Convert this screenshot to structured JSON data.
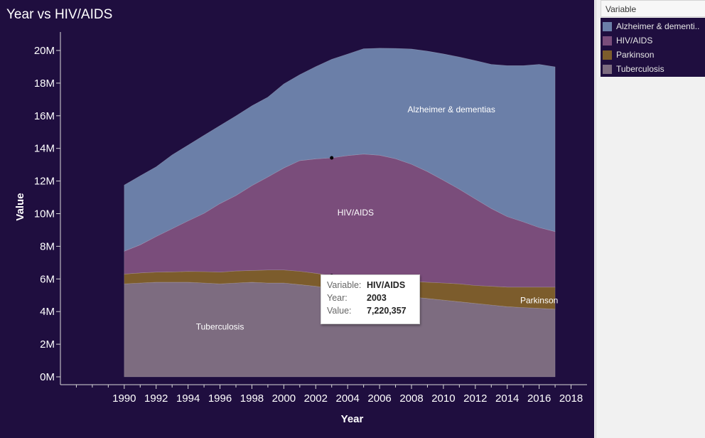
{
  "title": "Year vs HIV/AIDS",
  "legend": {
    "header": "Variable",
    "items": [
      {
        "label": "Alzheimer & dementias",
        "display": "Alzheimer & dementi..",
        "color": "#6b7fa8"
      },
      {
        "label": "HIV/AIDS",
        "display": "HIV/AIDS",
        "color": "#7a4d7b"
      },
      {
        "label": "Parkinson",
        "display": "Parkinson",
        "color": "#7c5c2c"
      },
      {
        "label": "Tuberculosis",
        "display": "Tuberculosis",
        "color": "#7d6c80"
      }
    ]
  },
  "tooltip": {
    "variable_key": "Variable:",
    "variable_value": "HIV/AIDS",
    "year_key": "Year:",
    "year_value": "2003",
    "value_key": "Value:",
    "value_value": "7,220,357"
  },
  "chart_data": {
    "type": "area",
    "stacked": true,
    "title": "Year vs HIV/AIDS",
    "xlabel": "Year",
    "ylabel": "Value",
    "x": [
      1990,
      1991,
      1992,
      1993,
      1994,
      1995,
      1996,
      1997,
      1998,
      1999,
      2000,
      2001,
      2002,
      2003,
      2004,
      2005,
      2006,
      2007,
      2008,
      2009,
      2010,
      2011,
      2012,
      2013,
      2014,
      2015,
      2016,
      2017
    ],
    "xlim": [
      1986,
      2019
    ],
    "xticks": [
      1990,
      1992,
      1994,
      1996,
      1998,
      2000,
      2002,
      2004,
      2006,
      2008,
      2010,
      2012,
      2014,
      2016,
      2018
    ],
    "ylim": [
      0,
      21000000
    ],
    "yticks": [
      0,
      2000000,
      4000000,
      6000000,
      8000000,
      10000000,
      12000000,
      14000000,
      16000000,
      18000000,
      20000000
    ],
    "ytick_labels": [
      "0M",
      "2M",
      "4M",
      "6M",
      "8M",
      "10M",
      "12M",
      "14M",
      "16M",
      "18M",
      "20M"
    ],
    "grid": false,
    "legend_position": "right",
    "series": [
      {
        "name": "Tuberculosis",
        "color": "#7d6c80",
        "label_x": 1996,
        "label_y": 2900000,
        "values": [
          5700000,
          5750000,
          5800000,
          5800000,
          5800000,
          5750000,
          5700000,
          5750000,
          5800000,
          5750000,
          5750000,
          5650000,
          5550000,
          5400000,
          5300000,
          5200000,
          5100000,
          5000000,
          4900000,
          4800000,
          4700000,
          4600000,
          4500000,
          4400000,
          4300000,
          4250000,
          4200000,
          4150000
        ]
      },
      {
        "name": "Parkinson",
        "color": "#7c5c2c",
        "label_x": 2016,
        "label_y": 4500000,
        "values": [
          600000,
          620000,
          620000,
          630000,
          660000,
          700000,
          720000,
          740000,
          720000,
          800000,
          800000,
          820000,
          800000,
          800000,
          800000,
          850000,
          880000,
          900000,
          950000,
          1000000,
          1050000,
          1100000,
          1100000,
          1150000,
          1200000,
          1250000,
          1300000,
          1350000
        ]
      },
      {
        "name": "HIV/AIDS",
        "color": "#7a4d7b",
        "label_x": 2004.5,
        "label_y": 9900000,
        "values": [
          1400000,
          1720000,
          2180000,
          2650000,
          3100000,
          3570000,
          4200000,
          4620000,
          5200000,
          5700000,
          6250000,
          6780000,
          7010000,
          7220000,
          7460000,
          7600000,
          7600000,
          7470000,
          7180000,
          6780000,
          6300000,
          5800000,
          5300000,
          4770000,
          4320000,
          4000000,
          3650000,
          3400000
        ]
      },
      {
        "name": "Alzheimer & dementias",
        "color": "#6b7fa8",
        "label_x": 2010.5,
        "label_y": 16200000,
        "values": [
          4050000,
          4230000,
          4270000,
          4520000,
          4640000,
          4780000,
          4780000,
          4880000,
          4890000,
          4890000,
          5150000,
          5270000,
          5650000,
          6040000,
          6220000,
          6460000,
          6560000,
          6760000,
          7060000,
          7380000,
          7740000,
          8100000,
          8480000,
          8830000,
          9250000,
          9570000,
          10000000,
          10100000
        ]
      }
    ],
    "highlight": {
      "series": "HIV/AIDS",
      "year": 2003,
      "value": 7220357
    }
  }
}
